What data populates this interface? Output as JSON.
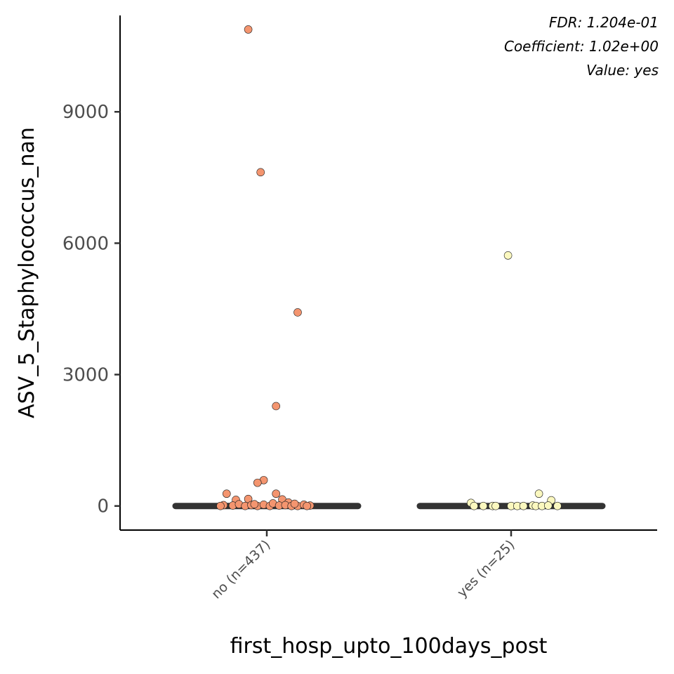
{
  "chart_data": {
    "type": "scatter",
    "xlabel": "first_hosp_upto_100days_post",
    "ylabel": "ASV_5_Staphylococcus_nan",
    "categories": [
      "no (n=437)",
      "yes (n=25)"
    ],
    "ylim": [
      -550,
      11200
    ],
    "yticks": [
      0,
      3000,
      6000,
      9000
    ],
    "ytick_labels": [
      "0",
      "3000",
      "6000",
      "9000"
    ],
    "grid": false,
    "annotations": [
      "FDR: 1.204e-01",
      "Coefficient: 1.02e+00",
      "Value: yes"
    ],
    "colors": {
      "no": "#f4956f",
      "yes": "#fbf8bf",
      "median_bar": "#333333",
      "axis": "#000000"
    },
    "medians": [
      0,
      0
    ],
    "series": [
      {
        "category": "no (n=437)",
        "points": [
          {
            "x": -0.12,
            "y": 10880
          },
          {
            "x": -0.04,
            "y": 7620
          },
          {
            "x": 0.2,
            "y": 4420
          },
          {
            "x": 0.06,
            "y": 2280
          },
          {
            "x": -0.02,
            "y": 590
          },
          {
            "x": -0.06,
            "y": 530
          },
          {
            "x": -0.26,
            "y": 280
          },
          {
            "x": 0.06,
            "y": 280
          },
          {
            "x": -0.2,
            "y": 140
          },
          {
            "x": 0.1,
            "y": 150
          },
          {
            "x": -0.12,
            "y": 160
          },
          {
            "x": 0.14,
            "y": 80
          },
          {
            "x": -0.28,
            "y": 20
          },
          {
            "x": -0.22,
            "y": 10
          },
          {
            "x": -0.18,
            "y": 40
          },
          {
            "x": -0.14,
            "y": 0
          },
          {
            "x": -0.1,
            "y": 20
          },
          {
            "x": -0.06,
            "y": 0
          },
          {
            "x": -0.02,
            "y": 30
          },
          {
            "x": 0.02,
            "y": 0
          },
          {
            "x": 0.04,
            "y": 60
          },
          {
            "x": 0.08,
            "y": 10
          },
          {
            "x": 0.12,
            "y": 20
          },
          {
            "x": 0.16,
            "y": 0
          },
          {
            "x": 0.2,
            "y": 0
          },
          {
            "x": 0.24,
            "y": 30
          },
          {
            "x": 0.28,
            "y": 10
          },
          {
            "x": 0.26,
            "y": 0
          },
          {
            "x": -0.3,
            "y": 0
          },
          {
            "x": -0.08,
            "y": 40
          },
          {
            "x": 0.18,
            "y": 50
          }
        ]
      },
      {
        "category": "yes (n=25)",
        "points": [
          {
            "x": -0.02,
            "y": 5720
          },
          {
            "x": 0.18,
            "y": 280
          },
          {
            "x": 0.26,
            "y": 130
          },
          {
            "x": -0.26,
            "y": 70
          },
          {
            "x": -0.24,
            "y": 0
          },
          {
            "x": -0.18,
            "y": 0
          },
          {
            "x": -0.12,
            "y": 0
          },
          {
            "x": -0.1,
            "y": 0
          },
          {
            "x": 0.0,
            "y": 0
          },
          {
            "x": 0.04,
            "y": 0
          },
          {
            "x": 0.08,
            "y": 0
          },
          {
            "x": 0.14,
            "y": 10
          },
          {
            "x": 0.16,
            "y": 0
          },
          {
            "x": 0.2,
            "y": 0
          },
          {
            "x": 0.24,
            "y": 10
          },
          {
            "x": 0.3,
            "y": 0
          }
        ]
      }
    ]
  }
}
